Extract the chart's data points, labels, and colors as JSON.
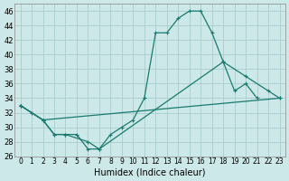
{
  "xlabel": "Humidex (Indice chaleur)",
  "bg_color": "#cce8e8",
  "grid_color": "#aacccc",
  "line_color": "#1a7a6e",
  "xlim": [
    -0.5,
    23.5
  ],
  "ylim": [
    26,
    47
  ],
  "xticks": [
    0,
    1,
    2,
    3,
    4,
    5,
    6,
    7,
    8,
    9,
    10,
    11,
    12,
    13,
    14,
    15,
    16,
    17,
    18,
    19,
    20,
    21,
    22,
    23
  ],
  "yticks": [
    26,
    28,
    30,
    32,
    34,
    36,
    38,
    40,
    42,
    44,
    46
  ],
  "series1": {
    "x": [
      0,
      1,
      2,
      3,
      4,
      5,
      6,
      7,
      8,
      9,
      10,
      11,
      12,
      13,
      14,
      15,
      16,
      17,
      18,
      19,
      20,
      21,
      22,
      23
    ],
    "y": [
      33,
      32,
      31,
      29,
      29,
      29,
      27,
      27,
      29,
      30,
      31,
      34,
      43,
      43,
      45,
      46,
      46,
      43,
      39,
      35,
      36,
      34,
      null,
      null
    ]
  },
  "series2": {
    "x": [
      0,
      2,
      3,
      4,
      6,
      7,
      18,
      20,
      22,
      23
    ],
    "y": [
      33,
      31,
      29,
      29,
      28,
      27,
      39,
      37,
      35,
      34
    ]
  },
  "series3": {
    "x": [
      0,
      2,
      23
    ],
    "y": [
      33,
      31,
      34
    ]
  },
  "xlabel_fontsize": 7,
  "tick_fontsize": 6,
  "xtick_fontsize": 5.5
}
